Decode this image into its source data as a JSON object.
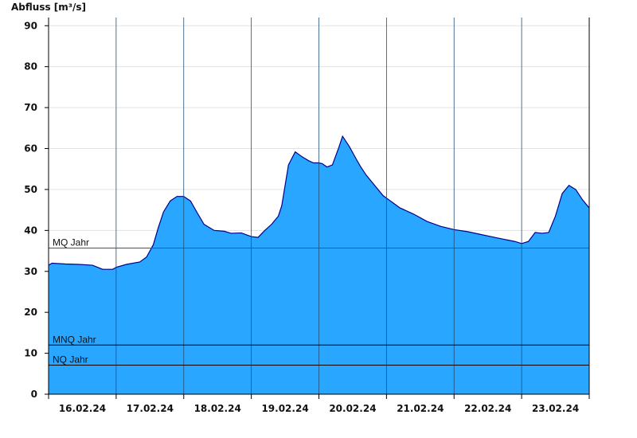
{
  "chart_data": {
    "type": "area",
    "ylabel": "Abfluss [m³/s]",
    "ylim": [
      0,
      92
    ],
    "yticks": [
      0,
      10,
      20,
      30,
      40,
      50,
      60,
      70,
      80,
      90
    ],
    "xlim": [
      0,
      8.0
    ],
    "xticklabels": [
      "16.02.24",
      "17.02.24",
      "18.02.24",
      "19.02.24",
      "20.02.24",
      "21.02.24",
      "22.02.24",
      "23.02.24"
    ],
    "grid": true,
    "colors": {
      "fill": "#29a6ff",
      "line": "#00008b",
      "mq": "#1a7a1a",
      "ref": "#000000"
    },
    "reference_lines": [
      {
        "name": "MQ Jahr",
        "value": 35.7
      },
      {
        "name": "MNQ Jahr",
        "value": 12.0
      },
      {
        "name": "NQ Jahr",
        "value": 7.1
      }
    ],
    "series": [
      {
        "x": [
          0.0,
          0.05,
          0.25,
          0.45,
          0.65,
          0.8,
          0.95,
          1.0,
          1.15,
          1.35,
          1.45,
          1.55,
          1.62,
          1.7,
          1.8,
          1.9,
          2.0,
          2.1,
          2.2,
          2.3,
          2.45,
          2.6,
          2.7,
          2.85,
          3.0,
          3.1,
          3.2,
          3.3,
          3.4,
          3.45,
          3.55,
          3.65,
          3.75,
          3.85,
          3.92,
          4.0,
          4.05,
          4.12,
          4.2,
          4.3,
          4.35,
          4.45,
          4.55,
          4.62,
          4.7,
          4.85,
          4.95,
          5.05,
          5.2,
          5.4,
          5.6,
          5.8,
          6.0,
          6.2,
          6.4,
          6.6,
          6.75,
          6.9,
          7.0,
          7.1,
          7.2,
          7.3,
          7.4,
          7.5,
          7.6,
          7.7,
          7.8,
          7.9,
          8.0
        ],
        "y": [
          31.5,
          32.0,
          31.8,
          31.7,
          31.5,
          30.5,
          30.5,
          31.0,
          31.7,
          32.3,
          33.5,
          36.5,
          40.5,
          44.5,
          47.2,
          48.3,
          48.3,
          47.2,
          44.3,
          41.5,
          40.0,
          39.8,
          39.3,
          39.4,
          38.5,
          38.3,
          40.0,
          41.5,
          43.5,
          46.0,
          56.0,
          59.2,
          58.0,
          57.0,
          56.5,
          56.5,
          56.3,
          55.5,
          56.0,
          60.5,
          63.0,
          60.5,
          57.5,
          55.5,
          53.5,
          50.5,
          48.5,
          47.3,
          45.5,
          44.0,
          42.2,
          41.0,
          40.2,
          39.7,
          39.0,
          38.3,
          37.8,
          37.3,
          36.8,
          37.3,
          39.5,
          39.3,
          39.5,
          43.5,
          49.0,
          51.0,
          50.0,
          47.5,
          45.5
        ]
      }
    ]
  }
}
